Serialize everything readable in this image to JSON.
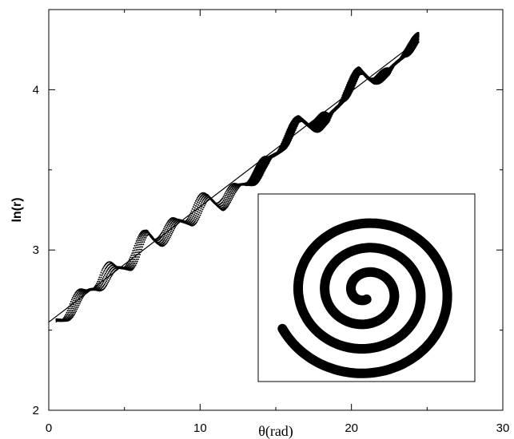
{
  "chart_data": {
    "type": "scatter",
    "title": "",
    "xlabel": "θ(rad)",
    "ylabel": "ln(r)",
    "xlim": [
      0,
      30
    ],
    "ylim": [
      2,
      4.5
    ],
    "x_ticks": [
      "0",
      "10",
      "20",
      "30"
    ],
    "y_ticks": [
      "2",
      "3",
      "4"
    ],
    "grid": false,
    "legend": "none",
    "colors": {
      "points": "#000000",
      "axes": "#000000",
      "background": "#ffffff"
    },
    "fit_line": {
      "x": [
        0,
        24.3
      ],
      "y": [
        2.55,
        4.3
      ]
    },
    "series": [
      {
        "marker": "dot",
        "x_range": [
          0.5,
          24.4
        ],
        "envelope": [
          {
            "x": 0.5,
            "y_min": 2.42,
            "y_max": 2.65
          },
          {
            "x": 1.5,
            "y_min": 2.55,
            "y_max": 2.75
          },
          {
            "x": 2.5,
            "y_min": 2.65,
            "y_max": 2.8
          },
          {
            "x": 3.5,
            "y_min": 2.72,
            "y_max": 2.95
          },
          {
            "x": 4.5,
            "y_min": 2.78,
            "y_max": 2.95
          },
          {
            "x": 5.5,
            "y_min": 2.85,
            "y_max": 3.05
          },
          {
            "x": 6.5,
            "y_min": 2.95,
            "y_max": 3.2
          },
          {
            "x": 7.5,
            "y_min": 3.0,
            "y_max": 3.18
          },
          {
            "x": 8.5,
            "y_min": 3.05,
            "y_max": 3.25
          },
          {
            "x": 9.5,
            "y_min": 3.12,
            "y_max": 3.35
          },
          {
            "x": 10.5,
            "y_min": 3.2,
            "y_max": 3.4
          },
          {
            "x": 11.5,
            "y_min": 3.22,
            "y_max": 3.4
          },
          {
            "x": 12.5,
            "y_min": 3.3,
            "y_max": 3.45
          },
          {
            "x": 13.5,
            "y_min": 3.38,
            "y_max": 3.55
          },
          {
            "x": 14.5,
            "y_min": 3.45,
            "y_max": 3.62
          },
          {
            "x": 15.5,
            "y_min": 3.6,
            "y_max": 3.75
          },
          {
            "x": 16.5,
            "y_min": 3.72,
            "y_max": 3.87
          },
          {
            "x": 17.5,
            "y_min": 3.72,
            "y_max": 3.87
          },
          {
            "x": 18.5,
            "y_min": 3.72,
            "y_max": 3.88
          },
          {
            "x": 19.5,
            "y_min": 3.9,
            "y_max": 4.05
          },
          {
            "x": 20.5,
            "y_min": 4.02,
            "y_max": 4.17
          },
          {
            "x": 21.5,
            "y_min": 4.02,
            "y_max": 4.12
          },
          {
            "x": 22.5,
            "y_min": 4.05,
            "y_max": 4.15
          },
          {
            "x": 23.5,
            "y_min": 4.18,
            "y_max": 4.3
          },
          {
            "x": 24.4,
            "y_min": 4.25,
            "y_max": 4.37
          }
        ]
      }
    ],
    "inset": {
      "type": "spiral",
      "description_visible": false,
      "turns": 3
    }
  }
}
